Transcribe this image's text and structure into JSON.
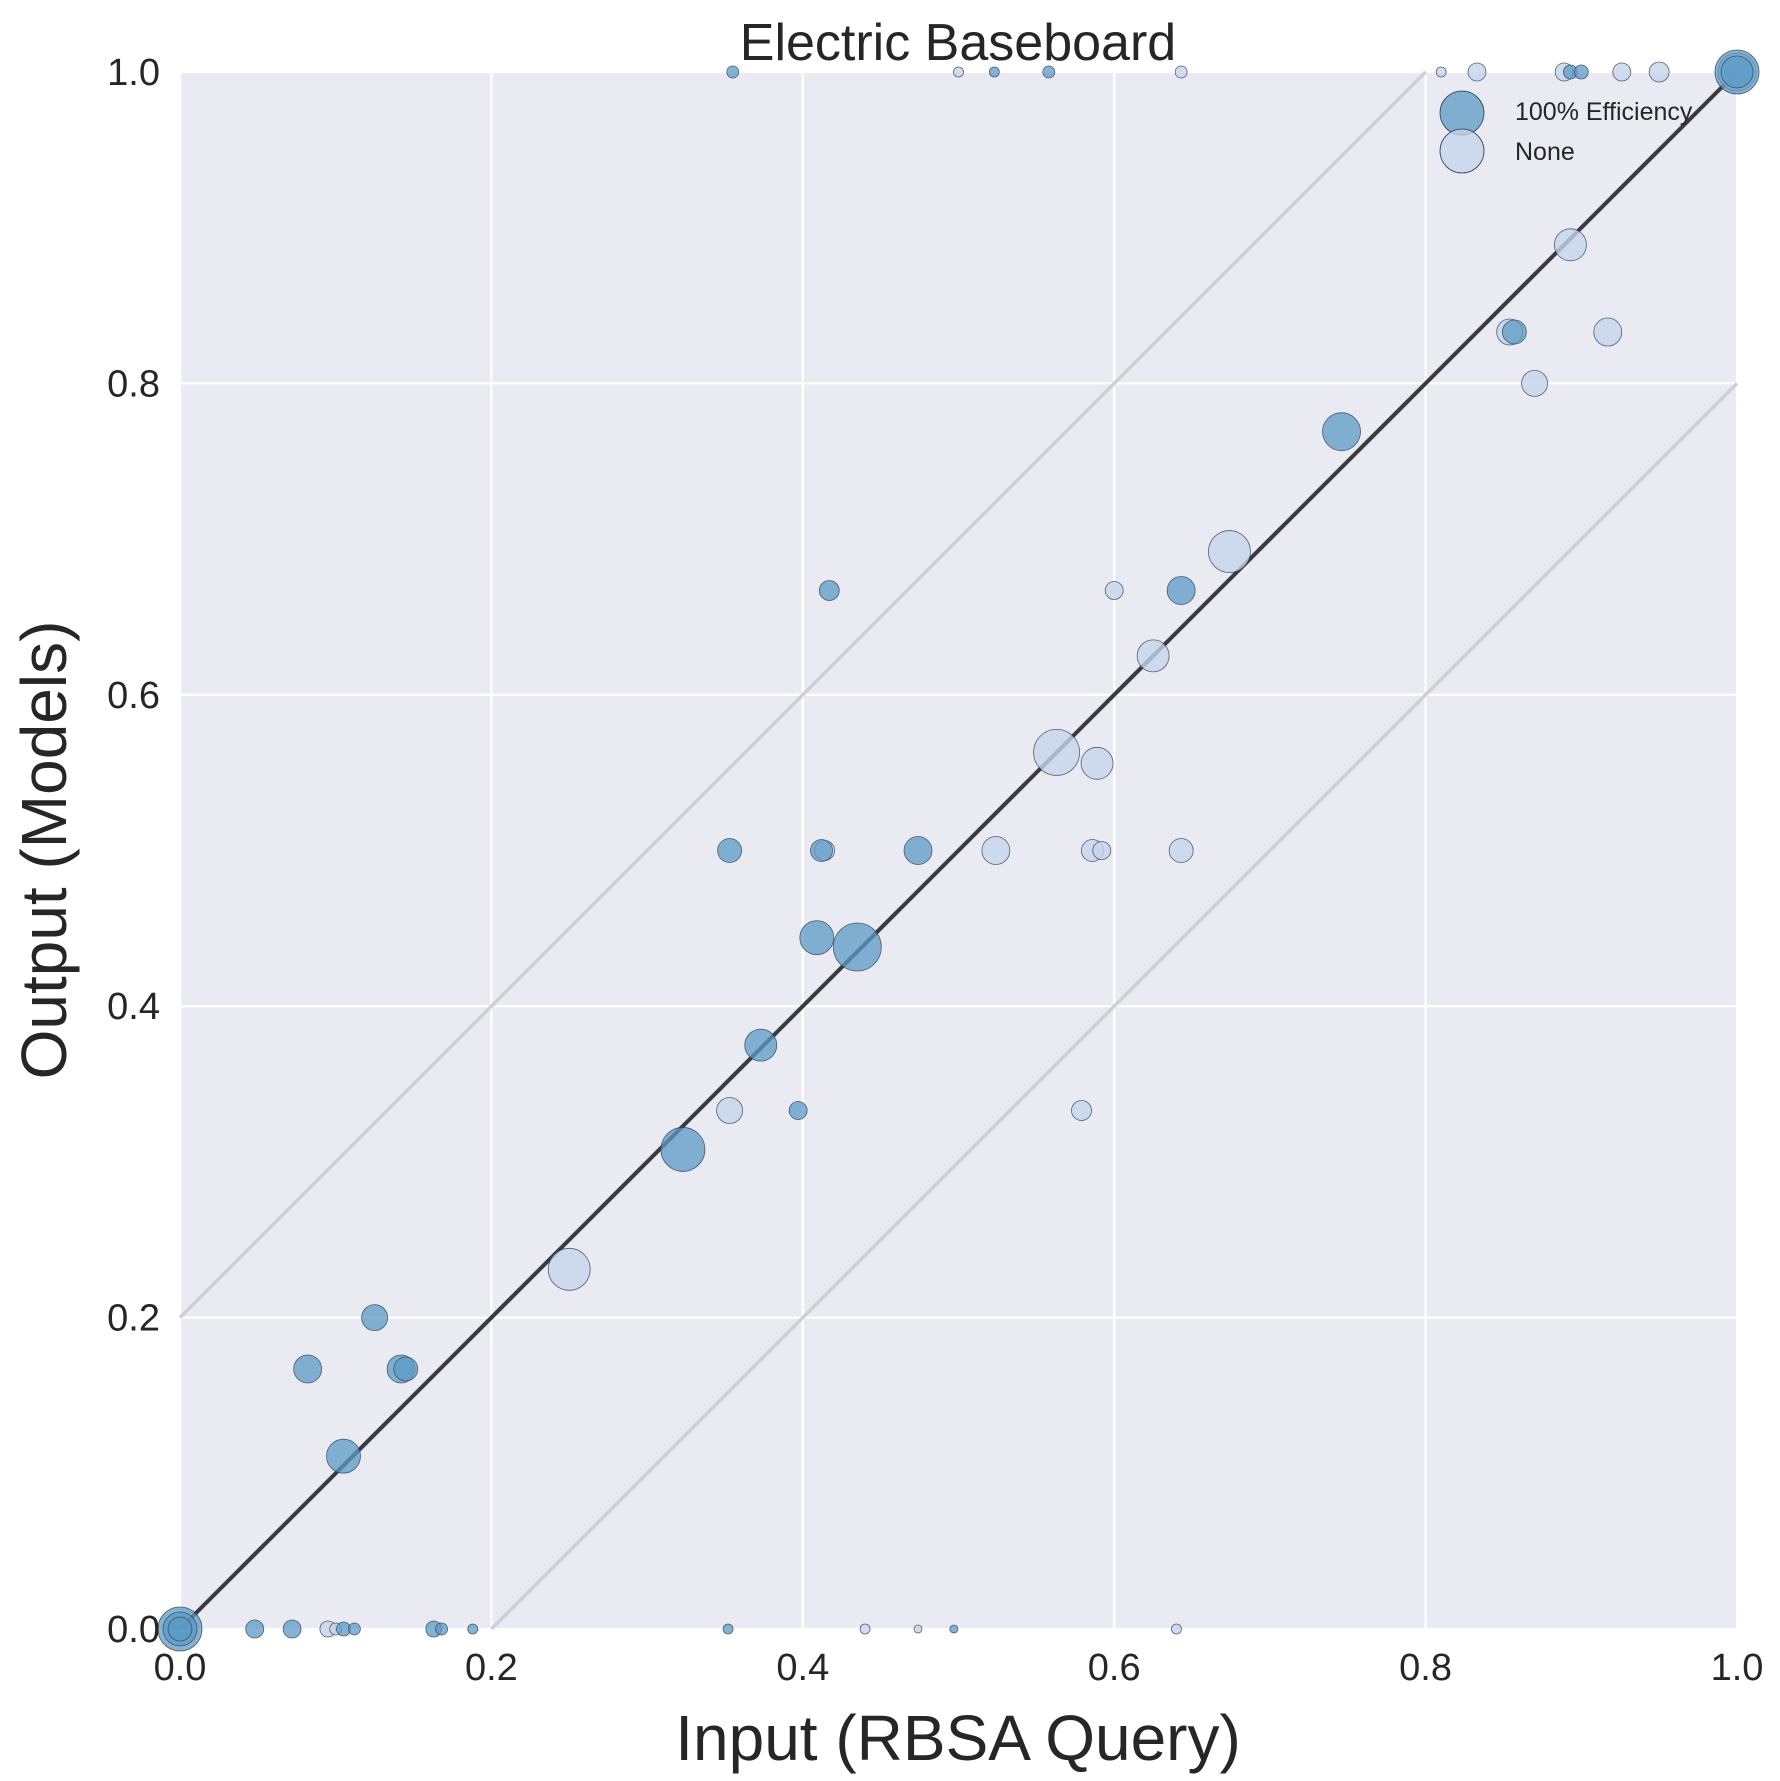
{
  "chart_data": {
    "type": "scatter",
    "title": "Electric Baseboard",
    "xlabel": "Input (RBSA Query)",
    "ylabel": "Output (Models)",
    "xlim": [
      0,
      1
    ],
    "ylim": [
      0,
      1
    ],
    "xticks": [
      "0.0",
      "0.2",
      "0.4",
      "0.6",
      "0.8",
      "1.0"
    ],
    "yticks": [
      "0.0",
      "0.2",
      "0.4",
      "0.6",
      "0.8",
      "1.0"
    ],
    "grid": true,
    "legend_position": "top-right",
    "colors": {
      "background": "#eaeaf2",
      "grid": "#ffffff",
      "identity_line": "#3a3a3f",
      "band_lines": "#cfcfd4",
      "series_efficiency": "#5b9ac6",
      "series_none": "#c6d5ea",
      "marker_edge": "#2f3d52"
    },
    "reference_lines": [
      {
        "x": [
          0,
          1
        ],
        "y": [
          0,
          1
        ],
        "style": "identity"
      },
      {
        "x": [
          0,
          0.8
        ],
        "y": [
          0.2,
          1
        ],
        "style": "band"
      },
      {
        "x": [
          0.2,
          1
        ],
        "y": [
          0,
          0.8
        ],
        "style": "band"
      }
    ],
    "series": [
      {
        "name": "100% Efficiency",
        "legend_r": 22,
        "points": [
          {
            "x": 0.0,
            "y": 0.0,
            "s": 22
          },
          {
            "x": 0.0,
            "y": 0.0,
            "s": 17
          },
          {
            "x": 0.0,
            "y": 0.0,
            "s": 12
          },
          {
            "x": 0.048,
            "y": 0.0,
            "s": 9
          },
          {
            "x": 0.072,
            "y": 0.0,
            "s": 9
          },
          {
            "x": 0.105,
            "y": 0.0,
            "s": 7
          },
          {
            "x": 0.112,
            "y": 0.0,
            "s": 6
          },
          {
            "x": 0.163,
            "y": 0.0,
            "s": 8
          },
          {
            "x": 0.168,
            "y": 0.0,
            "s": 6
          },
          {
            "x": 0.188,
            "y": 0.0,
            "s": 5
          },
          {
            "x": 0.352,
            "y": 0.0,
            "s": 5
          },
          {
            "x": 0.497,
            "y": 0.0,
            "s": 4
          },
          {
            "x": 0.082,
            "y": 0.167,
            "s": 14
          },
          {
            "x": 0.105,
            "y": 0.111,
            "s": 17
          },
          {
            "x": 0.125,
            "y": 0.2,
            "s": 13
          },
          {
            "x": 0.142,
            "y": 0.167,
            "s": 14
          },
          {
            "x": 0.145,
            "y": 0.167,
            "s": 12
          },
          {
            "x": 0.323,
            "y": 0.308,
            "s": 22
          },
          {
            "x": 0.353,
            "y": 0.5,
            "s": 12
          },
          {
            "x": 0.373,
            "y": 0.375,
            "s": 16
          },
          {
            "x": 0.397,
            "y": 0.333,
            "s": 9
          },
          {
            "x": 0.409,
            "y": 0.444,
            "s": 17
          },
          {
            "x": 0.412,
            "y": 0.5,
            "s": 11
          },
          {
            "x": 0.417,
            "y": 0.667,
            "s": 10
          },
          {
            "x": 0.435,
            "y": 0.438,
            "s": 24
          },
          {
            "x": 0.474,
            "y": 0.5,
            "s": 14
          },
          {
            "x": 0.643,
            "y": 0.667,
            "s": 14
          },
          {
            "x": 0.746,
            "y": 0.769,
            "s": 19
          },
          {
            "x": 0.857,
            "y": 0.833,
            "s": 12
          },
          {
            "x": 0.355,
            "y": 1.0,
            "s": 6
          },
          {
            "x": 0.523,
            "y": 1.0,
            "s": 5
          },
          {
            "x": 0.558,
            "y": 1.0,
            "s": 6
          },
          {
            "x": 0.893,
            "y": 1.0,
            "s": 7
          },
          {
            "x": 0.9,
            "y": 1.0,
            "s": 7
          },
          {
            "x": 1.0,
            "y": 1.0,
            "s": 22
          },
          {
            "x": 1.0,
            "y": 1.0,
            "s": 16
          }
        ]
      },
      {
        "name": "None",
        "legend_r": 22,
        "points": [
          {
            "x": 0.095,
            "y": 0.0,
            "s": 8
          },
          {
            "x": 0.1,
            "y": 0.0,
            "s": 6
          },
          {
            "x": 0.44,
            "y": 0.0,
            "s": 5
          },
          {
            "x": 0.474,
            "y": 0.0,
            "s": 4
          },
          {
            "x": 0.64,
            "y": 0.0,
            "s": 5
          },
          {
            "x": 0.25,
            "y": 0.231,
            "s": 21
          },
          {
            "x": 0.353,
            "y": 0.333,
            "s": 13
          },
          {
            "x": 0.414,
            "y": 0.5,
            "s": 10
          },
          {
            "x": 0.524,
            "y": 0.5,
            "s": 14
          },
          {
            "x": 0.563,
            "y": 0.563,
            "s": 23
          },
          {
            "x": 0.579,
            "y": 0.333,
            "s": 10
          },
          {
            "x": 0.586,
            "y": 0.5,
            "s": 11
          },
          {
            "x": 0.589,
            "y": 0.556,
            "s": 16
          },
          {
            "x": 0.592,
            "y": 0.5,
            "s": 9
          },
          {
            "x": 0.6,
            "y": 0.667,
            "s": 9
          },
          {
            "x": 0.625,
            "y": 0.625,
            "s": 16
          },
          {
            "x": 0.643,
            "y": 0.5,
            "s": 12
          },
          {
            "x": 0.674,
            "y": 0.692,
            "s": 21
          },
          {
            "x": 0.854,
            "y": 0.833,
            "s": 13
          },
          {
            "x": 0.87,
            "y": 0.8,
            "s": 13
          },
          {
            "x": 0.893,
            "y": 0.889,
            "s": 16
          },
          {
            "x": 0.917,
            "y": 0.833,
            "s": 14
          },
          {
            "x": 0.5,
            "y": 1.0,
            "s": 5
          },
          {
            "x": 0.643,
            "y": 1.0,
            "s": 6
          },
          {
            "x": 0.81,
            "y": 1.0,
            "s": 5
          },
          {
            "x": 0.833,
            "y": 1.0,
            "s": 9
          },
          {
            "x": 0.889,
            "y": 1.0,
            "s": 9
          },
          {
            "x": 0.926,
            "y": 1.0,
            "s": 9
          },
          {
            "x": 0.95,
            "y": 1.0,
            "s": 10
          },
          {
            "x": 1.0,
            "y": 1.0,
            "s": 19
          }
        ]
      }
    ]
  }
}
